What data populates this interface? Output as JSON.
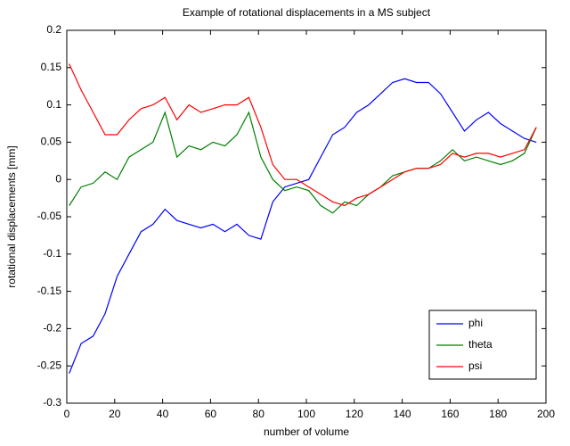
{
  "chart_data": {
    "type": "line",
    "title": "Example of rotational displacements in a MS subject",
    "x_label": "number of volume",
    "y_label": "rotational displacements [mm]",
    "x": [
      1,
      6,
      11,
      16,
      21,
      26,
      31,
      36,
      41,
      46,
      51,
      56,
      61,
      66,
      71,
      76,
      81,
      86,
      91,
      96,
      101,
      106,
      111,
      116,
      121,
      126,
      131,
      136,
      141,
      146,
      151,
      156,
      161,
      166,
      171,
      176,
      181,
      186,
      191,
      196
    ],
    "series": [
      {
        "name": "phi",
        "color": "#0000ff",
        "values": [
          -0.26,
          -0.22,
          -0.21,
          -0.18,
          -0.13,
          -0.1,
          -0.07,
          -0.06,
          -0.04,
          -0.055,
          -0.06,
          -0.065,
          -0.06,
          -0.07,
          -0.06,
          -0.075,
          -0.08,
          -0.03,
          -0.01,
          -0.005,
          0.0,
          0.03,
          0.06,
          0.07,
          0.09,
          0.1,
          0.115,
          0.13,
          0.135,
          0.13,
          0.13,
          0.115,
          0.09,
          0.065,
          0.08,
          0.09,
          0.075,
          0.065,
          0.055,
          0.05
        ]
      },
      {
        "name": "theta",
        "color": "#008000",
        "values": [
          -0.035,
          -0.01,
          -0.005,
          0.01,
          0.0,
          0.03,
          0.04,
          0.05,
          0.09,
          0.03,
          0.045,
          0.04,
          0.05,
          0.045,
          0.06,
          0.09,
          0.03,
          0.0,
          -0.015,
          -0.01,
          -0.015,
          -0.035,
          -0.045,
          -0.03,
          -0.035,
          -0.02,
          -0.01,
          0.005,
          0.01,
          0.015,
          0.015,
          0.025,
          0.04,
          0.025,
          0.03,
          0.025,
          0.02,
          0.025,
          0.035,
          0.07
        ]
      },
      {
        "name": "psi",
        "color": "#ff0000",
        "values": [
          0.155,
          0.12,
          0.09,
          0.06,
          0.06,
          0.08,
          0.095,
          0.1,
          0.11,
          0.08,
          0.1,
          0.09,
          0.095,
          0.1,
          0.1,
          0.11,
          0.07,
          0.02,
          0.0,
          0.0,
          -0.01,
          -0.02,
          -0.03,
          -0.035,
          -0.025,
          -0.02,
          -0.01,
          0.0,
          0.01,
          0.015,
          0.015,
          0.02,
          0.035,
          0.03,
          0.035,
          0.035,
          0.03,
          0.035,
          0.04,
          0.07
        ]
      }
    ],
    "xlim": [
      0,
      200
    ],
    "xticks": [
      0,
      20,
      40,
      60,
      80,
      100,
      120,
      140,
      160,
      180,
      200
    ],
    "ylim": [
      -0.3,
      0.2
    ],
    "yticks": [
      -0.3,
      -0.25,
      -0.2,
      -0.15,
      -0.1,
      -0.05,
      0,
      0.05,
      0.1,
      0.15,
      0.2
    ],
    "legend": "lower right",
    "grid": false
  }
}
